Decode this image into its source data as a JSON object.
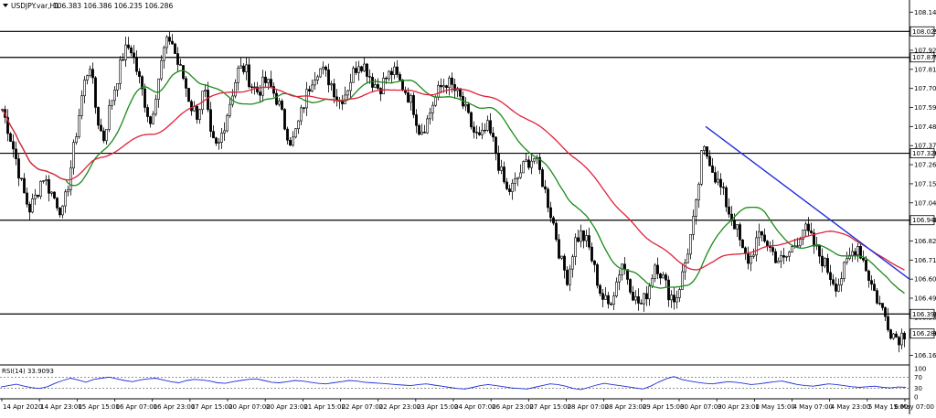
{
  "header": {
    "symbol": "USDJPY.var,H1",
    "ohlc": "106.383 106.386 106.235 106.286"
  },
  "chart_data": {
    "type": "candlestick",
    "title": "USDJPY.var,H1",
    "ylim": [
      106.105,
      108.21
    ],
    "y_ticks": [
      "108.140",
      "108.029",
      "107.920",
      "107.879",
      "107.810",
      "107.700",
      "107.590",
      "107.480",
      "107.370",
      "107.326",
      "107.260",
      "107.150",
      "107.040",
      "106.940",
      "106.820",
      "106.710",
      "106.600",
      "106.490",
      "106.399",
      "106.380",
      "106.286",
      "106.160"
    ],
    "x_ticks": [
      "14 Apr 2020",
      "14 Apr 23:00",
      "15 Apr 15:00",
      "16 Apr 07:00",
      "16 Apr 23:00",
      "17 Apr 15:00",
      "20 Apr 07:00",
      "20 Apr 23:00",
      "21 Apr 15:00",
      "22 Apr 07:00",
      "22 Apr 23:00",
      "23 Apr 15:00",
      "24 Apr 07:00",
      "26 Apr 23:00",
      "27 Apr 15:00",
      "28 Apr 07:00",
      "28 Apr 23:00",
      "29 Apr 15:00",
      "30 Apr 07:00",
      "30 Apr 23:00",
      "1 May 15:00",
      "4 May 07:00",
      "4 May 23:00",
      "5 May 15:00",
      "6 May 07:00"
    ],
    "horizontal_levels": [
      {
        "value": 108.029,
        "label": "108.029"
      },
      {
        "value": 107.879,
        "label": "107.879"
      },
      {
        "value": 107.326,
        "label": "107.326"
      },
      {
        "value": 106.94,
        "label": "106.940"
      },
      {
        "value": 106.399,
        "label": "106.399"
      }
    ],
    "current_price": {
      "value": 106.286,
      "label": "106.286"
    },
    "trendline": {
      "points": [
        [
          0,
          107.48
        ],
        [
          1,
          106.6
        ]
      ],
      "color": "#1f2fd6"
    },
    "price_path": [
      107.58,
      107.45,
      107.3,
      107.12,
      107.0,
      107.08,
      107.2,
      107.12,
      107.05,
      106.98,
      107.2,
      107.45,
      107.7,
      107.85,
      107.55,
      107.4,
      107.6,
      107.75,
      107.9,
      107.95,
      107.8,
      107.65,
      107.5,
      107.72,
      107.92,
      108.0,
      107.85,
      107.75,
      107.6,
      107.55,
      107.7,
      107.4,
      107.35,
      107.5,
      107.65,
      107.8,
      107.82,
      107.72,
      107.68,
      107.74,
      107.7,
      107.62,
      107.48,
      107.38,
      107.5,
      107.64,
      107.76,
      107.82,
      107.78,
      107.72,
      107.62,
      107.68,
      107.78,
      107.86,
      107.82,
      107.74,
      107.7,
      107.76,
      107.8,
      107.74,
      107.68,
      107.6,
      107.45,
      107.5,
      107.62,
      107.7,
      107.74,
      107.7,
      107.64,
      107.55,
      107.45,
      107.4,
      107.48,
      107.38,
      107.22,
      107.1,
      107.14,
      107.22,
      107.28,
      107.3,
      107.2,
      107.05,
      106.9,
      106.7,
      106.6,
      106.82,
      106.86,
      106.8,
      106.65,
      106.5,
      106.45,
      106.55,
      106.7,
      106.6,
      106.48,
      106.45,
      106.55,
      106.7,
      106.62,
      106.52,
      106.48,
      106.62,
      106.8,
      107.0,
      107.35,
      107.3,
      107.18,
      107.1,
      106.98,
      106.9,
      106.75,
      106.7,
      106.82,
      106.85,
      106.78,
      106.72,
      106.7,
      106.76,
      106.82,
      106.9,
      106.84,
      106.76,
      106.7,
      106.62,
      106.56,
      106.65,
      106.74,
      106.8,
      106.7,
      106.58,
      106.48,
      106.4,
      106.3,
      106.26,
      106.29
    ],
    "rsi": {
      "label": "RSI(14) 33.9093",
      "ylim": [
        0,
        100
      ],
      "y_ticks": [
        "100",
        "70",
        "30",
        "0"
      ],
      "levels": [
        70,
        30
      ],
      "values": [
        35,
        40,
        45,
        38,
        33,
        30,
        36,
        48,
        58,
        66,
        60,
        52,
        62,
        66,
        70,
        64,
        58,
        54,
        60,
        64,
        66,
        60,
        54,
        50,
        58,
        62,
        60,
        56,
        50,
        48,
        54,
        58,
        62,
        64,
        58,
        52,
        50,
        54,
        58,
        56,
        52,
        48,
        46,
        50,
        54,
        58,
        56,
        52,
        50,
        48,
        46,
        44,
        42,
        40,
        44,
        46,
        42,
        38,
        34,
        30,
        28,
        34,
        40,
        44,
        40,
        36,
        32,
        30,
        28,
        34,
        40,
        46,
        44,
        38,
        30,
        26,
        34,
        42,
        48,
        44,
        40,
        36,
        32,
        28,
        38,
        52,
        64,
        72,
        62,
        56,
        52,
        48,
        46,
        50,
        54,
        52,
        48,
        44,
        46,
        50,
        54,
        56,
        50,
        44,
        40,
        38,
        42,
        46,
        44,
        40,
        36,
        34,
        36,
        38,
        34,
        32,
        35,
        34
      ]
    },
    "ma_fast_color": "#1a8a1a",
    "ma_slow_color": "#e0203a",
    "candle_color": "#000000"
  }
}
